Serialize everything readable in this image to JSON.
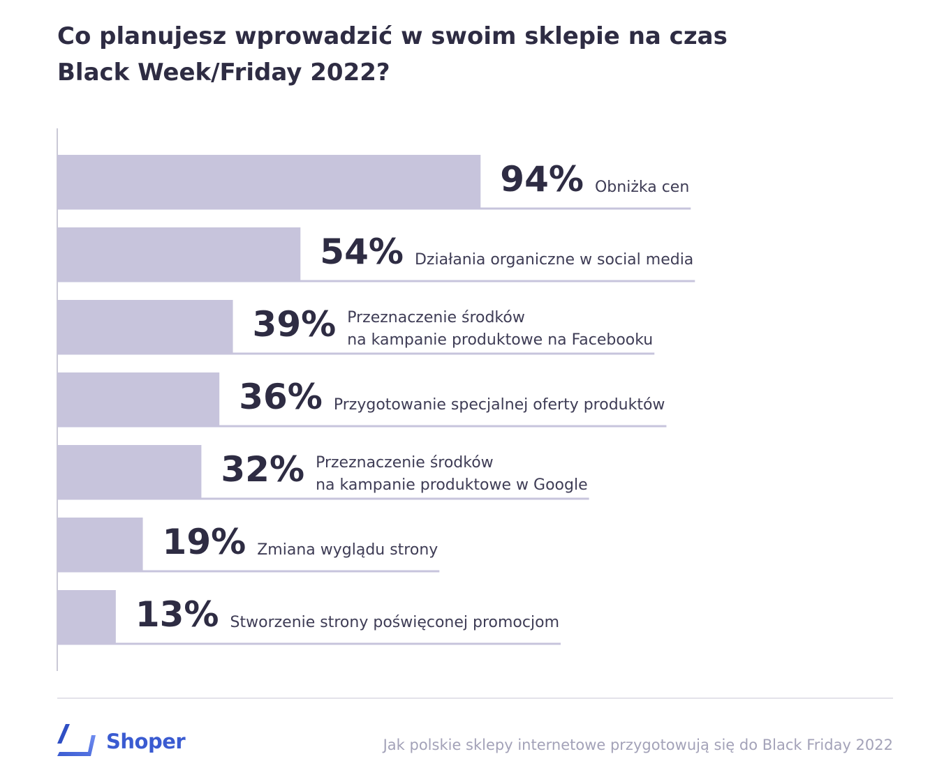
{
  "title_lines": [
    "Co planujesz wprowadzić w swoim sklepie na czas",
    "Black Week/Friday 2022?"
  ],
  "colors": {
    "bar": "#c7c4dc",
    "underline": "#c7c4dc",
    "text": "#3e3c55",
    "value": "#2e2c43",
    "axis": "#b9b7c8"
  },
  "chart_data": {
    "type": "bar",
    "orientation": "horizontal",
    "xlim": [
      0,
      100
    ],
    "grid": false,
    "categories": [
      [
        "Obniżka cen"
      ],
      [
        "Działania organiczne w social media"
      ],
      [
        "Przeznaczenie środków",
        "na kampanie produktowe na Facebooku"
      ],
      [
        "Przygotowanie specjalnej oferty produktów"
      ],
      [
        "Przeznaczenie środków",
        "na kampanie produktowe w Google"
      ],
      [
        "Zmiana wyglądu strony"
      ],
      [
        "Stworzenie strony poświęconej promocjom"
      ]
    ],
    "values": [
      94,
      54,
      39,
      36,
      32,
      19,
      13
    ],
    "value_labels": [
      "94%",
      "54%",
      "39%",
      "36%",
      "32%",
      "19%",
      "13%"
    ]
  },
  "footer": {
    "brand": "Shoper",
    "logo_icon": "shoper-logo-icon",
    "source": "Jak polskie sklepy internetowe przygotowują się do Black Friday 2022"
  }
}
